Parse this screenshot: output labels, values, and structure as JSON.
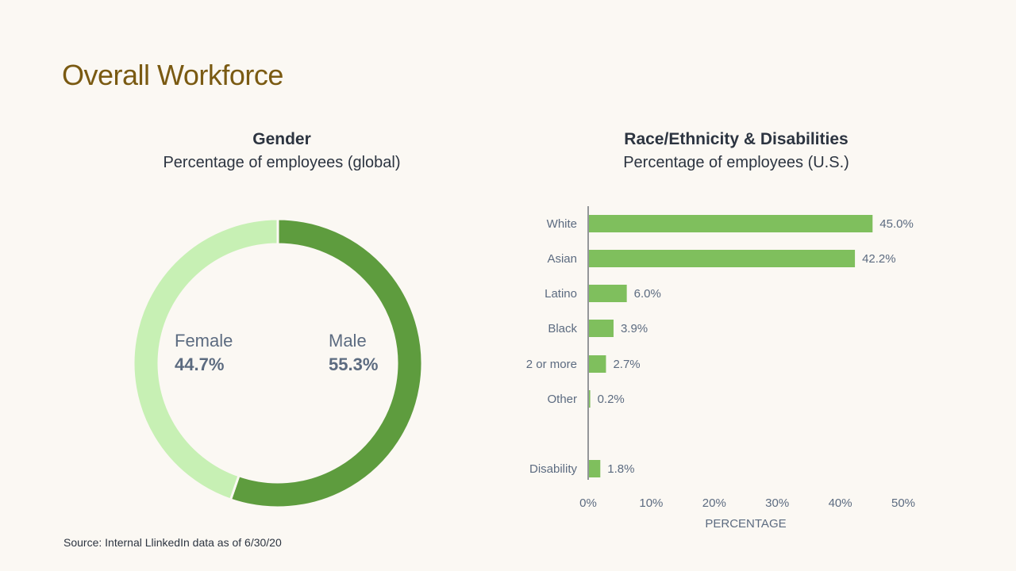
{
  "page": {
    "title": "Overall Workforce",
    "source": "Source: Internal LlinkedIn data as of 6/30/20"
  },
  "colors": {
    "background": "#fbf8f3",
    "title": "#7a5a12",
    "male": "#5e9c3e",
    "female": "#c7f0b4",
    "bar": "#7fbf5d",
    "label": "#5c6b80",
    "heading": "#2c3440"
  },
  "chart_data": [
    {
      "type": "pie",
      "variant": "donut",
      "title": "Gender",
      "subtitle": "Percentage of employees (global)",
      "slices": [
        {
          "label": "Male",
          "value": 55.3,
          "value_label": "55.3%"
        },
        {
          "label": "Female",
          "value": 44.7,
          "value_label": "44.7%"
        }
      ]
    },
    {
      "type": "bar",
      "orientation": "horizontal",
      "title": "Race/Ethnicity & Disabilities",
      "subtitle": "Percentage of employees (U.S.)",
      "categories": [
        "White",
        "Asian",
        "Latino",
        "Black",
        "2 or more",
        "Other",
        "Disability"
      ],
      "values": [
        45.0,
        42.2,
        6.0,
        3.9,
        2.7,
        0.2,
        1.8
      ],
      "value_labels": [
        "45.0%",
        "42.2%",
        "6.0%",
        "3.9%",
        "2.7%",
        "0.2%",
        "1.8%"
      ],
      "xlabel": "PERCENTAGE",
      "xlim": [
        0,
        50
      ],
      "xticks": [
        "0%",
        "10%",
        "20%",
        "30%",
        "40%",
        "50%"
      ],
      "grid": false
    }
  ]
}
